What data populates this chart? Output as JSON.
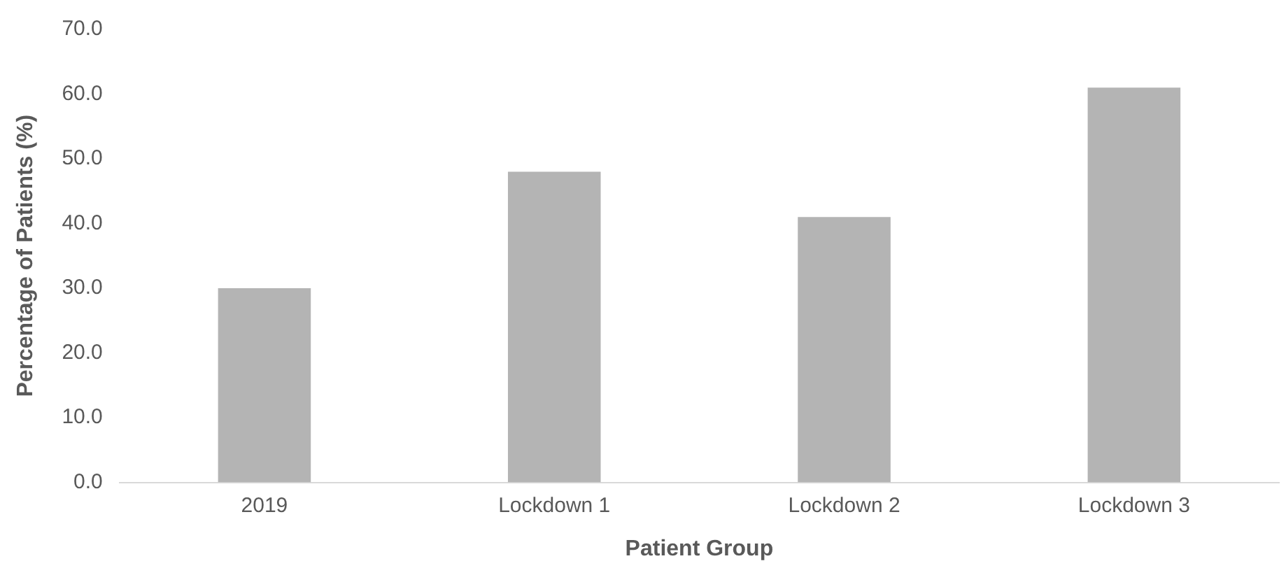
{
  "chart_data": {
    "type": "bar",
    "xlabel": "Patient Group",
    "ylabel": "Percentage of Patients (%)",
    "categories": [
      "2019",
      "Lockdown 1",
      "Lockdown 2",
      "Lockdown 3"
    ],
    "values": [
      30,
      48,
      41,
      61
    ],
    "color": "#b4b4b4",
    "ylim": [
      0,
      70
    ],
    "yticks": [
      {
        "value": 0,
        "label": "0.0"
      },
      {
        "value": 10,
        "label": "10.0"
      },
      {
        "value": 20,
        "label": "20.0"
      },
      {
        "value": 30,
        "label": "30.0"
      },
      {
        "value": 40,
        "label": "40.0"
      },
      {
        "value": 50,
        "label": "50.0"
      },
      {
        "value": 60,
        "label": "60.0"
      },
      {
        "value": 70,
        "label": "70.0"
      }
    ],
    "grid": false,
    "legend": false
  }
}
